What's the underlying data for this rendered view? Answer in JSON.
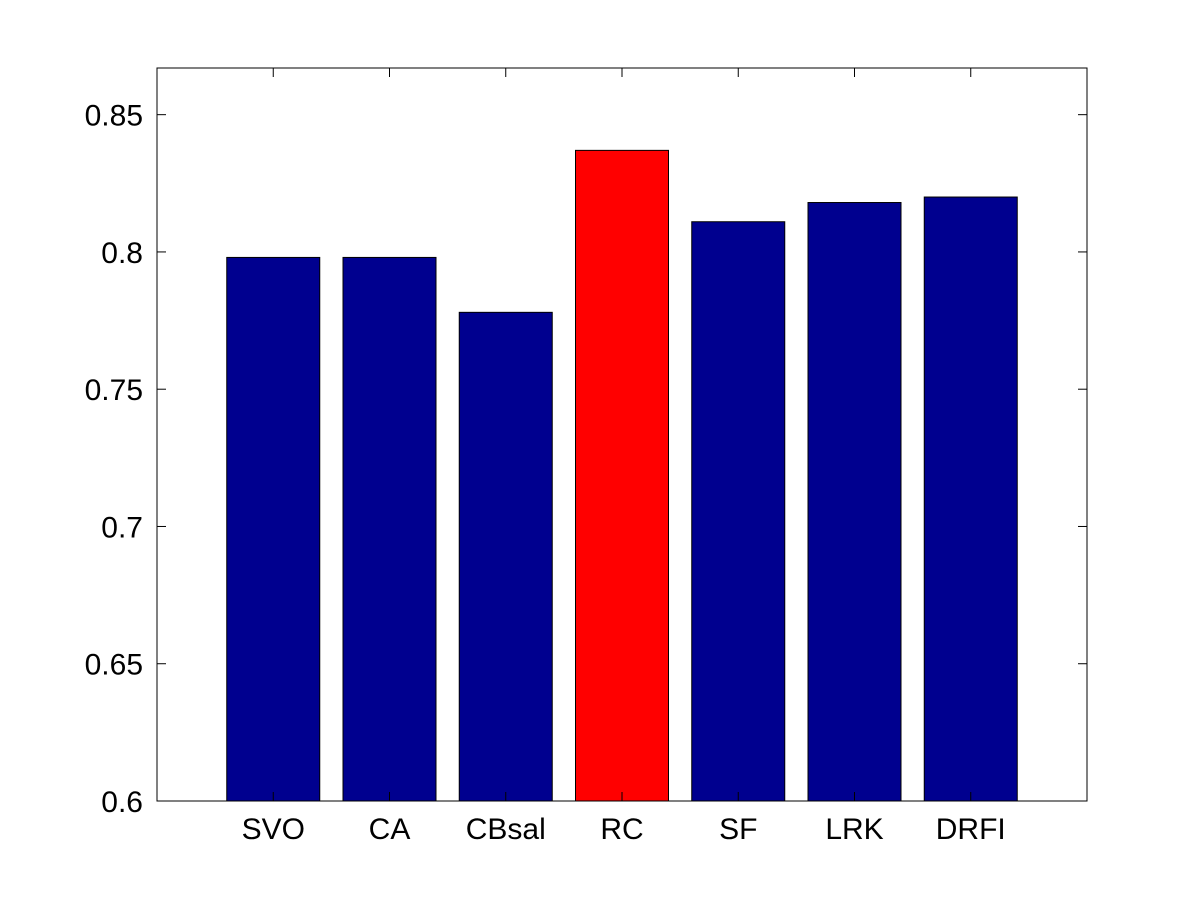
{
  "chart_data": {
    "type": "bar",
    "title": "",
    "xlabel": "",
    "ylabel": "",
    "categories": [
      "SVO",
      "CA",
      "CBsal",
      "RC",
      "SF",
      "LRK",
      "DRFI"
    ],
    "values": [
      0.798,
      0.798,
      0.778,
      0.837,
      0.811,
      0.818,
      0.82
    ],
    "bar_colors": [
      "#00008f",
      "#00008f",
      "#00008f",
      "#ff0000",
      "#00008f",
      "#00008f",
      "#00008f"
    ],
    "ylim": [
      0.6,
      0.867
    ],
    "yticks": [
      0.6,
      0.65,
      0.7,
      0.75,
      0.8,
      0.85
    ],
    "ytick_labels": [
      "0.6",
      "0.65",
      "0.7",
      "0.75",
      "0.8",
      "0.85"
    ],
    "xlim": [
      0,
      8
    ],
    "grid": false,
    "legend": "none"
  }
}
